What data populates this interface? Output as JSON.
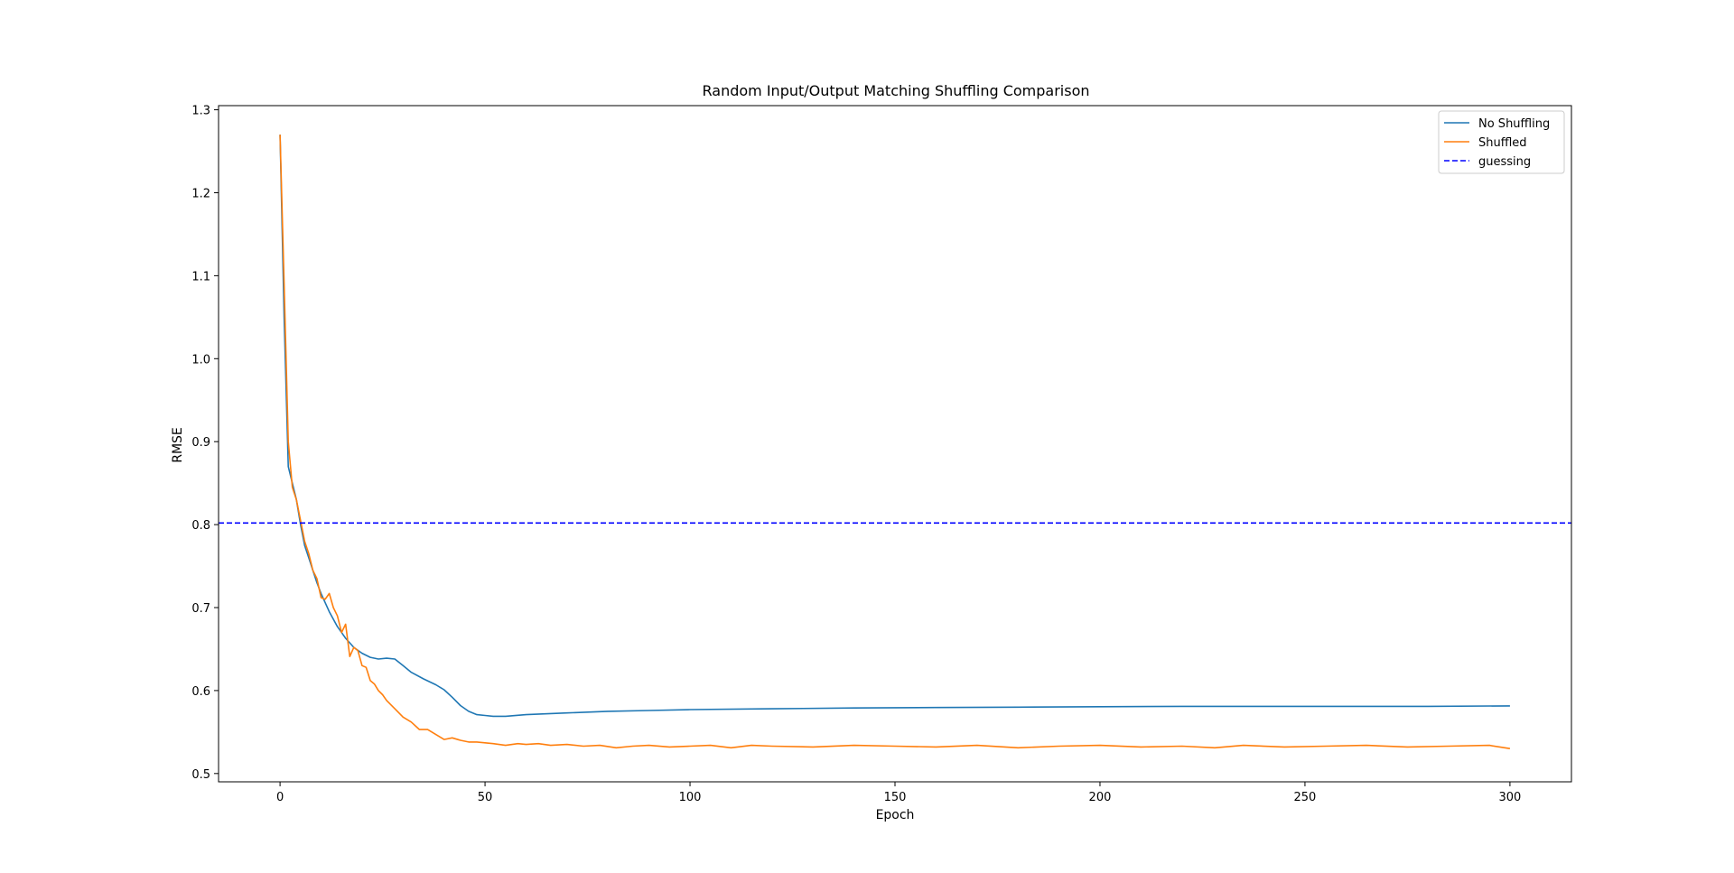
{
  "chart_data": {
    "type": "line",
    "title": "Random Input/Output Matching Shuffling Comparison",
    "xlabel": "Epoch",
    "ylabel": "RMSE",
    "xlim": [
      -15,
      315
    ],
    "ylim": [
      0.49,
      1.305
    ],
    "xticks": [
      0,
      50,
      100,
      150,
      200,
      250,
      300
    ],
    "yticks": [
      0.5,
      0.6,
      0.7,
      0.8,
      0.9,
      1.0,
      1.1,
      1.2,
      1.3
    ],
    "grid": false,
    "legend_position": "top-right",
    "series": [
      {
        "name": "No Shuffling",
        "color": "#1f77b4",
        "style": "solid",
        "x": [
          0,
          1,
          2,
          3,
          4,
          5,
          6,
          7,
          8,
          9,
          10,
          12,
          14,
          16,
          18,
          20,
          22,
          24,
          26,
          28,
          30,
          32,
          35,
          38,
          40,
          42,
          44,
          46,
          48,
          50,
          52,
          55,
          60,
          70,
          80,
          90,
          100,
          120,
          140,
          160,
          180,
          200,
          220,
          240,
          260,
          280,
          300
        ],
        "y": [
          1.27,
          1.05,
          0.87,
          0.85,
          0.83,
          0.8,
          0.775,
          0.76,
          0.745,
          0.73,
          0.717,
          0.695,
          0.677,
          0.663,
          0.652,
          0.645,
          0.64,
          0.638,
          0.639,
          0.638,
          0.63,
          0.622,
          0.614,
          0.607,
          0.601,
          0.592,
          0.582,
          0.575,
          0.571,
          0.57,
          0.569,
          0.569,
          0.571,
          0.573,
          0.575,
          0.576,
          0.577,
          0.578,
          0.579,
          0.5795,
          0.58,
          0.5805,
          0.581,
          0.581,
          0.581,
          0.581,
          0.5815
        ]
      },
      {
        "name": "Shuffled",
        "color": "#ff7f0e",
        "style": "solid",
        "x": [
          0,
          1,
          2,
          3,
          4,
          5,
          6,
          7,
          8,
          9,
          10,
          11,
          12,
          13,
          14,
          15,
          16,
          17,
          18,
          19,
          20,
          21,
          22,
          23,
          24,
          25,
          26,
          28,
          30,
          32,
          34,
          36,
          38,
          40,
          42,
          44,
          46,
          48,
          50,
          52,
          55,
          58,
          60,
          63,
          66,
          70,
          74,
          78,
          82,
          86,
          90,
          95,
          100,
          105,
          110,
          115,
          120,
          130,
          140,
          150,
          160,
          170,
          180,
          190,
          200,
          210,
          220,
          228,
          235,
          245,
          255,
          265,
          275,
          285,
          295,
          300
        ],
        "y": [
          1.27,
          1.09,
          0.9,
          0.845,
          0.83,
          0.805,
          0.78,
          0.765,
          0.745,
          0.735,
          0.712,
          0.71,
          0.717,
          0.7,
          0.69,
          0.67,
          0.68,
          0.641,
          0.652,
          0.648,
          0.63,
          0.628,
          0.612,
          0.608,
          0.6,
          0.595,
          0.588,
          0.578,
          0.568,
          0.562,
          0.553,
          0.553,
          0.547,
          0.541,
          0.543,
          0.54,
          0.538,
          0.538,
          0.537,
          0.536,
          0.534,
          0.536,
          0.535,
          0.536,
          0.534,
          0.535,
          0.533,
          0.534,
          0.531,
          0.533,
          0.534,
          0.532,
          0.533,
          0.534,
          0.531,
          0.534,
          0.533,
          0.532,
          0.534,
          0.533,
          0.532,
          0.534,
          0.531,
          0.533,
          0.534,
          0.532,
          0.533,
          0.531,
          0.534,
          0.532,
          0.533,
          0.534,
          0.532,
          0.533,
          0.534,
          0.53
        ]
      },
      {
        "name": "guessing",
        "color": "#0000ff",
        "style": "dashed",
        "y_constant": 0.802
      }
    ]
  }
}
